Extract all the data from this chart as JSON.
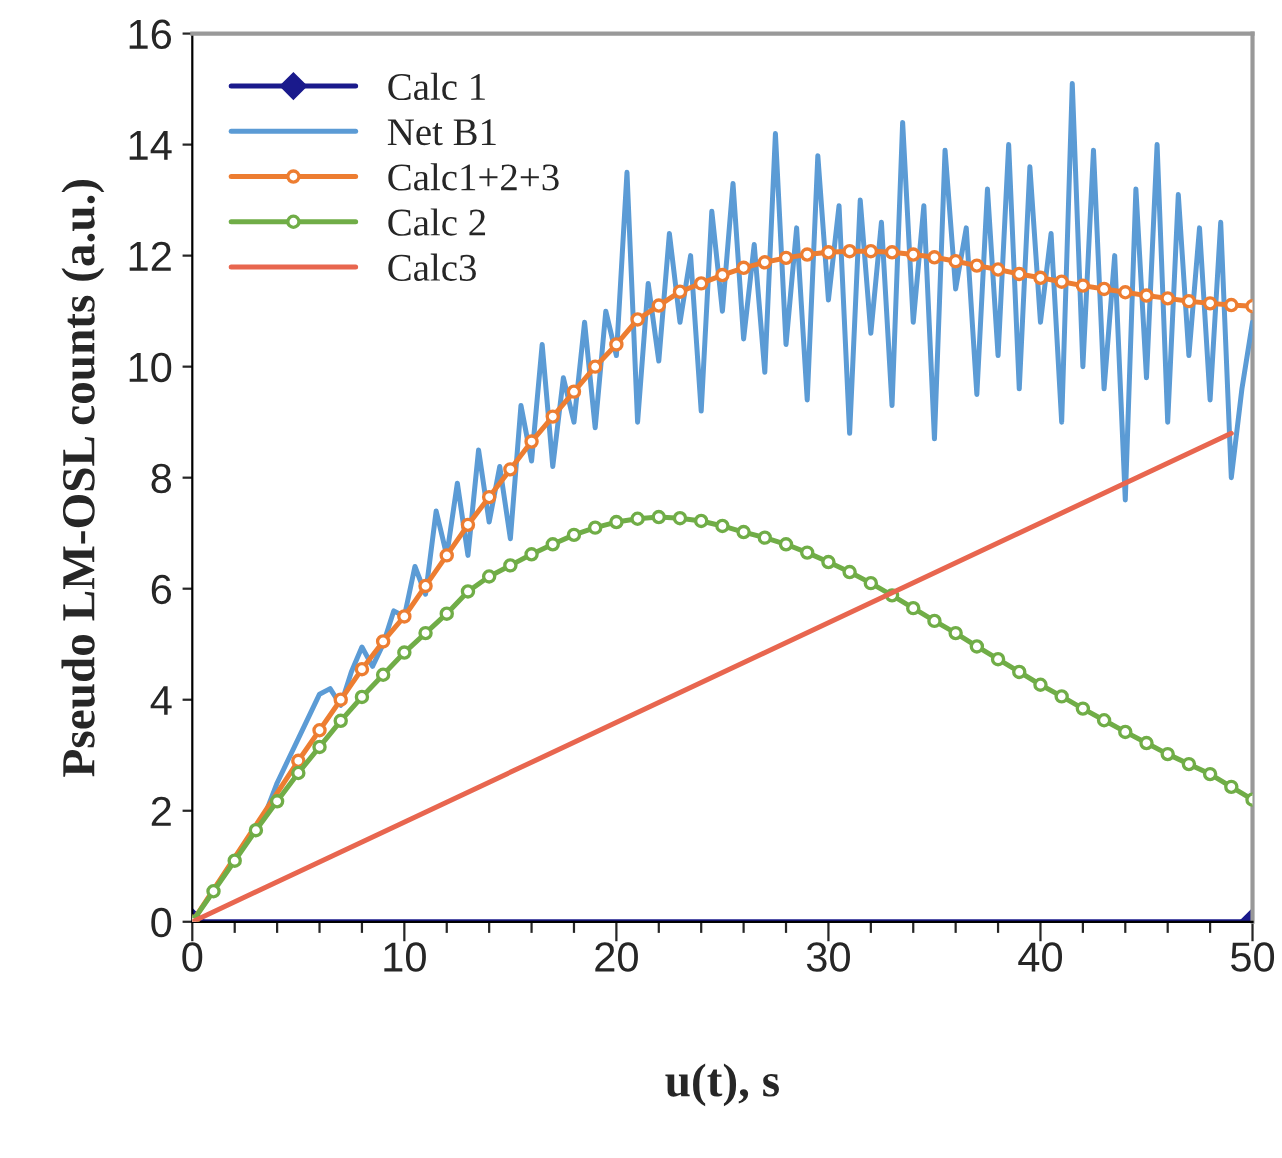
{
  "chart_data": {
    "type": "line",
    "xlabel": "u(t), s",
    "ylabel": "Pseudo LM-OSL counts (a.u.)",
    "xlim": [
      0,
      50
    ],
    "ylim": [
      0,
      16
    ],
    "xticks": [
      0,
      {
        "value": 2,
        "label": null
      },
      {
        "value": 4,
        "label": null
      },
      {
        "value": 6,
        "label": null
      },
      {
        "value": 8,
        "label": null
      },
      10,
      {
        "value": 12,
        "label": null
      },
      {
        "value": 14,
        "label": null
      },
      {
        "value": 16,
        "label": null
      },
      {
        "value": 18,
        "label": null
      },
      20,
      {
        "value": 22,
        "label": null
      },
      {
        "value": 24,
        "label": null
      },
      {
        "value": 26,
        "label": null
      },
      {
        "value": 28,
        "label": null
      },
      30,
      {
        "value": 32,
        "label": null
      },
      {
        "value": 34,
        "label": null
      },
      {
        "value": 36,
        "label": null
      },
      {
        "value": 38,
        "label": null
      },
      40,
      {
        "value": 42,
        "label": null
      },
      {
        "value": 44,
        "label": null
      },
      {
        "value": 46,
        "label": null
      },
      {
        "value": 48,
        "label": null
      },
      50
    ],
    "yticks": [
      0,
      2,
      4,
      6,
      8,
      10,
      12,
      14,
      16
    ],
    "grid": false,
    "legend": "top left",
    "series": [
      {
        "name": "Calc 1",
        "color": "#1a1a8c",
        "marker": "diamond",
        "x": [
          0,
          50
        ],
        "values": [
          0,
          0
        ]
      },
      {
        "name": "Net B1",
        "color": "#5b9bd5",
        "marker": "none",
        "x": [
          3,
          3.5,
          4,
          4.5,
          5,
          5.5,
          6,
          6.5,
          7,
          7.5,
          8,
          8.5,
          9,
          9.5,
          10,
          10.5,
          11,
          11.5,
          12,
          12.5,
          13,
          13.5,
          14,
          14.5,
          15,
          15.5,
          16,
          16.5,
          17,
          17.5,
          18,
          18.5,
          19,
          19.5,
          20,
          20.5,
          21,
          21.5,
          22,
          22.5,
          23,
          23.5,
          24,
          24.5,
          25,
          25.5,
          26,
          26.5,
          27,
          27.5,
          28,
          28.5,
          29,
          29.5,
          30,
          30.5,
          31,
          31.5,
          32,
          32.5,
          33,
          33.5,
          34,
          34.5,
          35,
          35.5,
          36,
          36.5,
          37,
          37.5,
          38,
          38.5,
          39,
          39.5,
          40,
          40.5,
          41,
          41.5,
          42,
          42.5,
          43,
          43.5,
          44,
          44.5,
          45,
          45.5,
          46,
          46.5,
          47,
          47.5,
          48,
          48.5,
          49,
          49.5,
          50
        ],
        "values": [
          1.65,
          2.0,
          2.5,
          2.9,
          3.3,
          3.7,
          4.1,
          4.2,
          3.9,
          4.5,
          4.95,
          4.6,
          5.0,
          5.6,
          5.5,
          6.4,
          5.9,
          7.4,
          6.6,
          7.9,
          6.6,
          8.5,
          7.2,
          8.2,
          6.9,
          9.3,
          8.3,
          10.4,
          8.2,
          9.8,
          9.0,
          10.8,
          8.9,
          11.0,
          10.2,
          13.5,
          9.0,
          11.5,
          10.1,
          12.4,
          10.8,
          12.0,
          9.2,
          12.8,
          11.0,
          13.3,
          10.5,
          12.2,
          9.9,
          14.2,
          10.4,
          12.5,
          9.4,
          13.8,
          11.2,
          12.9,
          8.8,
          13.0,
          10.6,
          12.6,
          9.3,
          14.4,
          10.8,
          12.9,
          8.7,
          13.9,
          11.4,
          12.5,
          9.5,
          13.2,
          10.2,
          14.0,
          9.6,
          13.6,
          10.8,
          12.4,
          9.0,
          15.1,
          10.0,
          13.9,
          9.6,
          12.0,
          7.6,
          13.2,
          9.8,
          14.0,
          9.0,
          13.1,
          10.2,
          12.5,
          9.4,
          12.6,
          8.0,
          9.6,
          10.8
        ]
      },
      {
        "name": "Calc1+2+3",
        "color": "#ed7d31",
        "marker": "circle",
        "x": [
          0,
          1,
          2,
          3,
          4,
          5,
          6,
          7,
          8,
          9,
          10,
          11,
          12,
          13,
          14,
          15,
          16,
          17,
          18,
          19,
          20,
          21,
          22,
          23,
          24,
          25,
          26,
          27,
          28,
          29,
          30,
          31,
          32,
          33,
          34,
          35,
          36,
          37,
          38,
          39,
          40,
          41,
          42,
          43,
          44,
          45,
          46,
          47,
          48,
          49,
          50
        ],
        "values": [
          0,
          null,
          null,
          null,
          null,
          2.9,
          3.45,
          4.0,
          4.55,
          5.05,
          5.5,
          6.05,
          6.6,
          7.15,
          7.65,
          8.15,
          8.65,
          9.1,
          9.55,
          10.0,
          10.4,
          10.85,
          11.1,
          11.35,
          11.5,
          11.65,
          11.78,
          11.88,
          11.96,
          12.02,
          12.06,
          12.08,
          12.08,
          12.06,
          12.02,
          11.97,
          11.9,
          11.82,
          11.75,
          11.67,
          11.6,
          11.53,
          11.46,
          11.4,
          11.34,
          11.28,
          11.23,
          11.18,
          11.14,
          11.11,
          11.09
        ]
      },
      {
        "name": "Calc 2",
        "color": "#70ad47",
        "marker": "circle",
        "x": [
          0,
          1,
          2,
          3,
          4,
          5,
          6,
          7,
          8,
          9,
          10,
          11,
          12,
          13,
          14,
          15,
          16,
          17,
          18,
          19,
          20,
          21,
          22,
          23,
          24,
          25,
          26,
          27,
          28,
          29,
          30,
          31,
          32,
          33,
          34,
          35,
          36,
          37,
          38,
          39,
          40,
          41,
          42,
          43,
          44,
          45,
          46,
          47,
          48,
          49,
          50
        ],
        "values": [
          0,
          0.55,
          1.1,
          1.65,
          2.17,
          2.68,
          3.15,
          3.62,
          4.05,
          4.45,
          4.85,
          5.2,
          5.55,
          5.95,
          6.22,
          6.42,
          6.62,
          6.8,
          6.97,
          7.1,
          7.2,
          7.26,
          7.29,
          7.27,
          7.22,
          7.13,
          7.02,
          6.92,
          6.8,
          6.65,
          6.48,
          6.3,
          6.1,
          5.88,
          5.65,
          5.42,
          5.2,
          4.96,
          4.73,
          4.5,
          4.27,
          4.06,
          3.84,
          3.63,
          3.42,
          3.22,
          3.02,
          2.84,
          2.66,
          2.43,
          2.2
        ]
      },
      {
        "name": "Calc3",
        "color": "#e8664f",
        "marker": "none",
        "x": [
          0,
          49
        ],
        "values": [
          0,
          8.8
        ]
      }
    ]
  }
}
